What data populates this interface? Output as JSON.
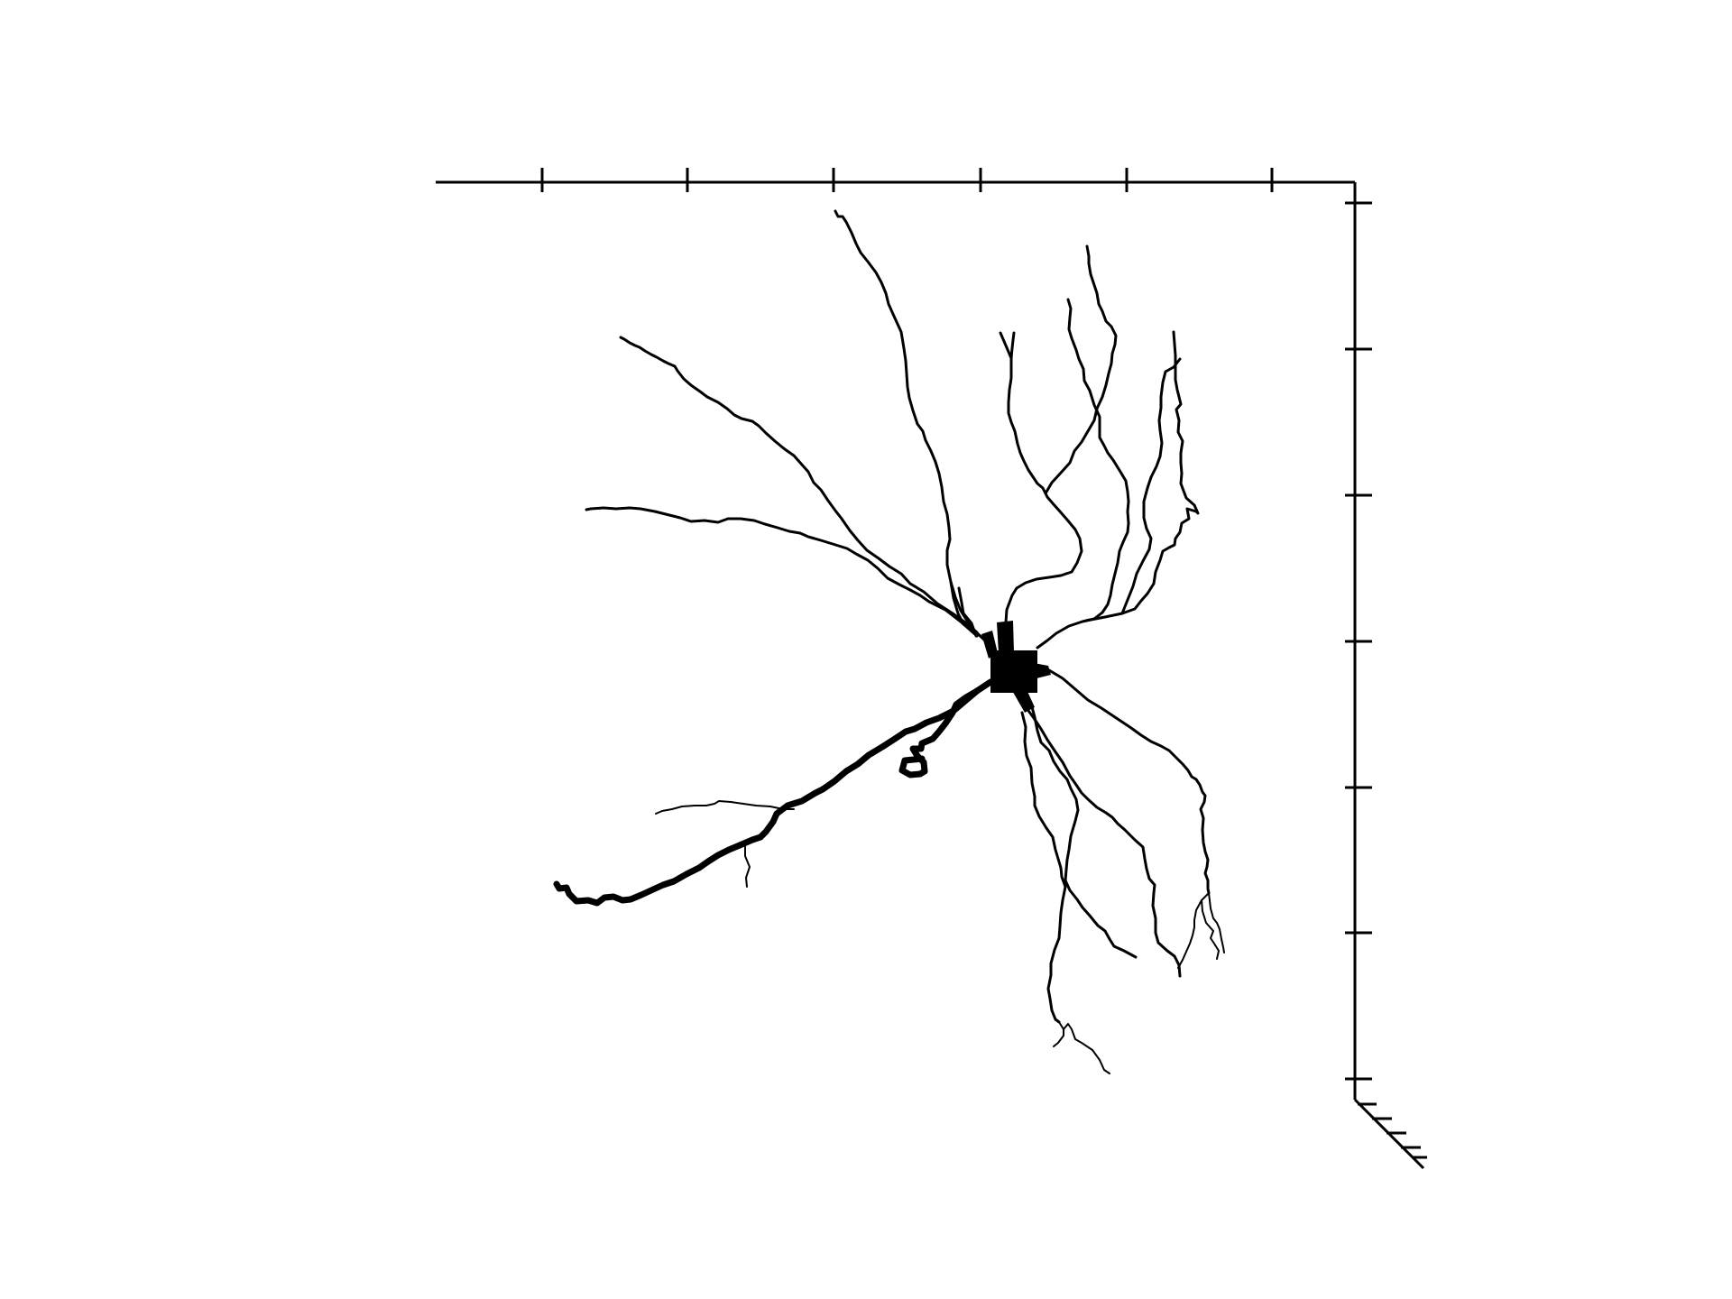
{
  "figure": {
    "kind": "neuron morphology rendering",
    "ink_color": "#000000",
    "background_color": "#ffffff",
    "axes": {
      "visible": true,
      "tick_labels": false,
      "x_axis": {
        "label": "",
        "tick_count": 6
      },
      "y_axis": {
        "label": "",
        "tick_count": 7
      },
      "z_axis": {
        "label": "",
        "tick_count": 5
      }
    }
  }
}
